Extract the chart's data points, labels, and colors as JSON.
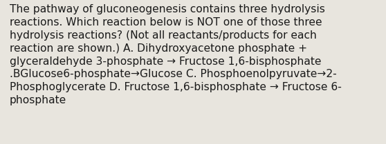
{
  "background_color": "#e8e5de",
  "text_color": "#1a1a1a",
  "lines": [
    "The pathway of gluconeogenesis contains three hydrolysis",
    "reactions. Which reaction below is NOT one of those three",
    "hydrolysis reactions? (Not all reactants/products for each",
    "reaction are shown.) A. Dihydroxyacetone phosphate +",
    "glyceraldehyde 3-phosphate → Fructose 1,6-bisphosphate",
    ".BGlucose6-phosphate→Glucose C. Phosphoenolpyruvate→2-",
    "Phosphoglycerate D. Fructose 1,6-bisphosphate → Fructose 6-",
    "phosphate"
  ],
  "font_size": 11.2,
  "fig_width": 5.58,
  "fig_height": 2.09,
  "dpi": 100
}
